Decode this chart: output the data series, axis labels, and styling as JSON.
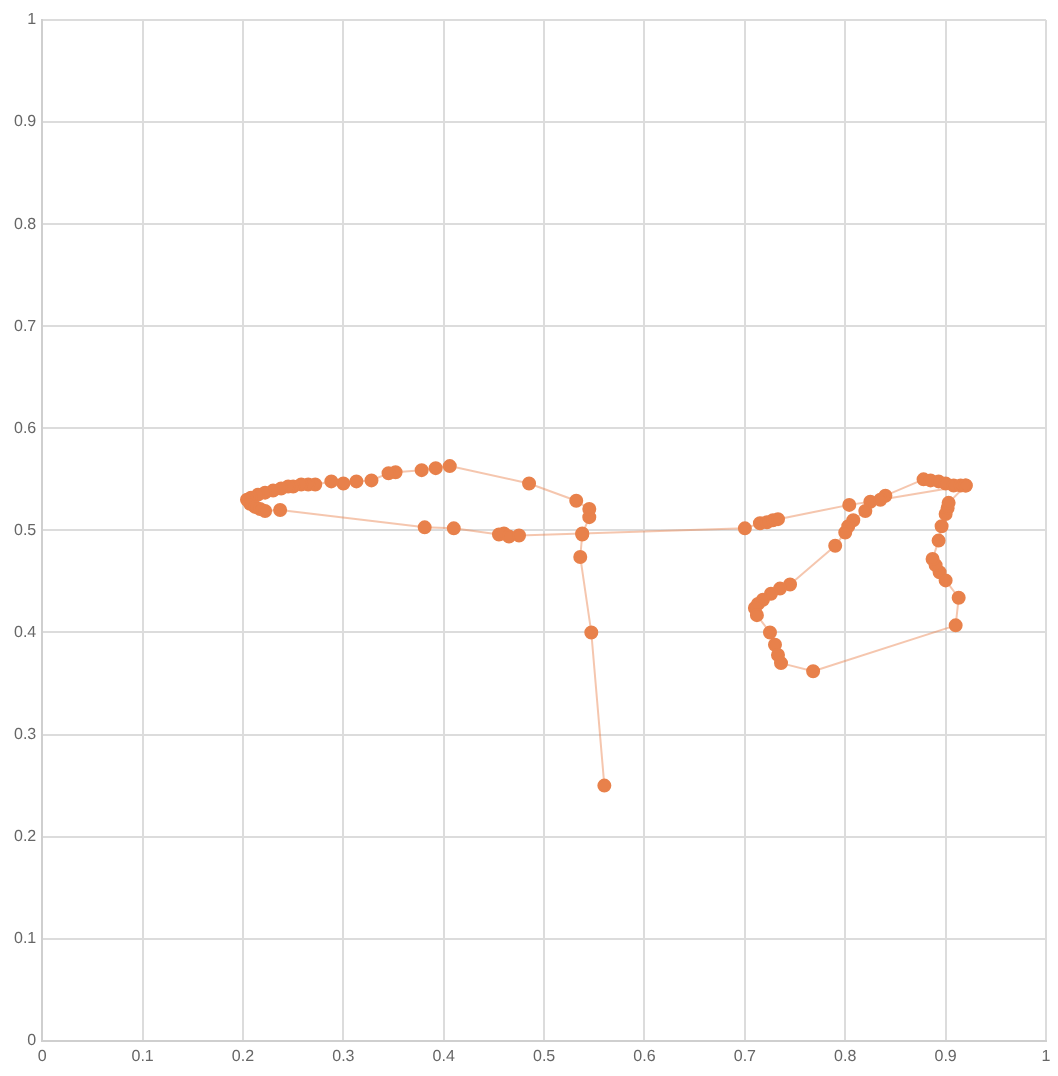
{
  "chart_data": {
    "type": "line",
    "marker": "circle",
    "line_style": "solid",
    "grid": true,
    "legend": false,
    "xlim": [
      0,
      1
    ],
    "xticks": [
      0,
      0.1,
      0.2,
      0.3,
      0.4,
      0.5,
      0.6,
      0.7,
      0.8,
      0.9,
      1
    ],
    "ylim": [
      0,
      1
    ],
    "yticks": [
      0,
      0.1,
      0.2,
      0.3,
      0.4,
      0.5,
      0.6,
      0.7,
      0.8,
      0.9,
      1
    ],
    "series": [
      {
        "color": "#e8814b",
        "x": [
          0.56,
          0.547,
          0.536,
          0.538,
          0.545,
          0.545,
          0.532,
          0.485,
          0.406,
          0.392,
          0.378,
          0.352,
          0.345,
          0.328,
          0.313,
          0.3,
          0.288,
          0.272,
          0.265,
          0.258,
          0.25,
          0.245,
          0.238,
          0.23,
          0.222,
          0.215,
          0.208,
          0.204,
          0.207,
          0.212,
          0.217,
          0.222,
          0.237,
          0.381,
          0.41,
          0.455,
          0.46,
          0.465,
          0.475,
          0.538,
          0.7,
          0.715,
          0.722,
          0.728,
          0.733,
          0.804,
          0.825,
          0.84,
          0.878,
          0.885,
          0.893,
          0.9,
          0.908,
          0.915,
          0.92,
          0.835,
          0.82,
          0.808,
          0.803,
          0.8,
          0.79,
          0.745,
          0.735,
          0.726,
          0.718,
          0.713,
          0.71,
          0.712,
          0.725,
          0.73,
          0.733,
          0.736,
          0.768,
          0.91,
          0.913,
          0.9,
          0.894,
          0.89,
          0.887,
          0.893,
          0.896,
          0.9,
          0.902,
          0.903,
          0.92
        ],
        "values": [
          0.25,
          0.4,
          0.474,
          0.496,
          0.513,
          0.521,
          0.529,
          0.546,
          0.563,
          0.561,
          0.559,
          0.557,
          0.556,
          0.549,
          0.548,
          0.546,
          0.548,
          0.545,
          0.545,
          0.545,
          0.543,
          0.543,
          0.541,
          0.539,
          0.537,
          0.535,
          0.532,
          0.53,
          0.526,
          0.523,
          0.521,
          0.519,
          0.52,
          0.503,
          0.502,
          0.496,
          0.497,
          0.494,
          0.495,
          0.497,
          0.502,
          0.507,
          0.508,
          0.51,
          0.511,
          0.525,
          0.528,
          0.534,
          0.55,
          0.549,
          0.548,
          0.546,
          0.544,
          0.544,
          0.544,
          0.53,
          0.519,
          0.51,
          0.504,
          0.498,
          0.485,
          0.447,
          0.443,
          0.438,
          0.432,
          0.428,
          0.424,
          0.417,
          0.4,
          0.388,
          0.378,
          0.37,
          0.362,
          0.407,
          0.434,
          0.451,
          0.459,
          0.466,
          0.472,
          0.49,
          0.504,
          0.516,
          0.522,
          0.527,
          0.544
        ]
      }
    ]
  }
}
